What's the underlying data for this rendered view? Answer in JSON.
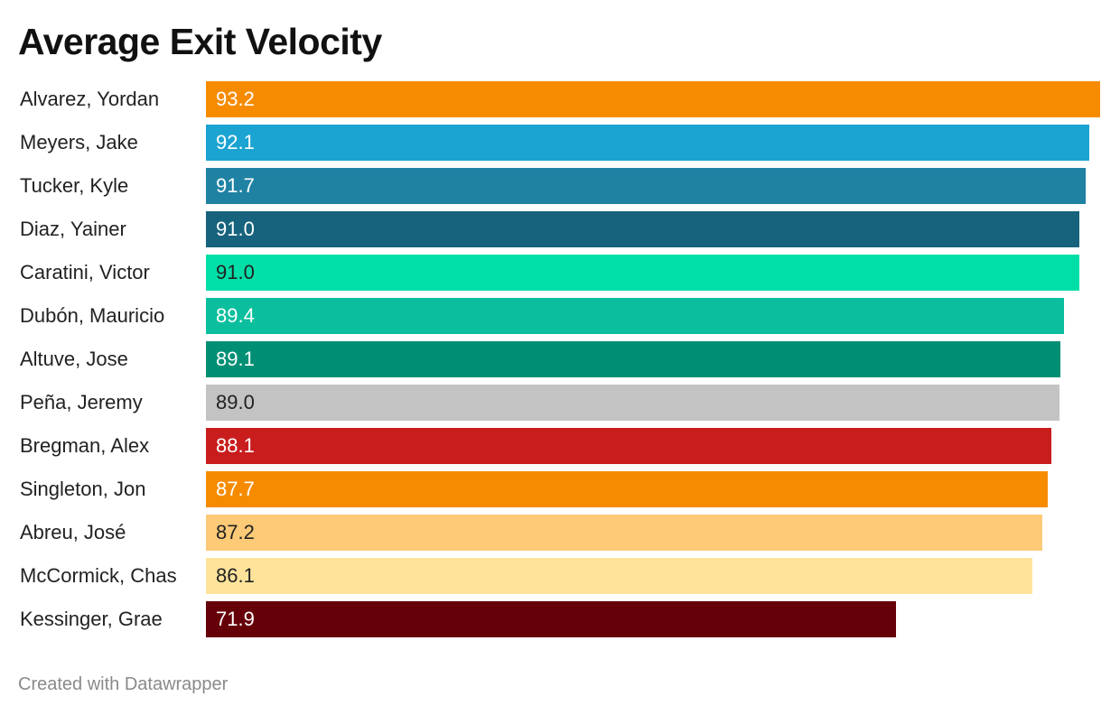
{
  "title": "Average Exit Velocity",
  "footer": "Created with Datawrapper",
  "chart_data": {
    "type": "bar",
    "orientation": "horizontal",
    "title": "Average Exit Velocity",
    "xlabel": "",
    "ylabel": "",
    "xlim": [
      0,
      93.2
    ],
    "grid": false,
    "legend": "none",
    "categories": [
      "Alvarez, Yordan",
      "Meyers, Jake",
      "Tucker, Kyle",
      "Diaz, Yainer",
      "Caratini, Victor",
      "Dubón, Mauricio",
      "Altuve, Jose",
      "Peña, Jeremy",
      "Bregman, Alex",
      "Singleton, Jon",
      "Abreu, José",
      "McCormick, Chas",
      "Kessinger, Grae"
    ],
    "values": [
      93.2,
      92.1,
      91.7,
      91.0,
      91.0,
      89.4,
      89.1,
      89.0,
      88.1,
      87.7,
      87.2,
      86.1,
      71.9
    ],
    "labels": [
      "93.2",
      "92.1",
      "91.7",
      "91.0",
      "91.0",
      "89.4",
      "89.1",
      "89.0",
      "88.1",
      "87.7",
      "87.2",
      "86.1",
      "71.9"
    ],
    "colors": [
      "#f68b00",
      "#1ba3d1",
      "#1f82a3",
      "#17637d",
      "#00dfa8",
      "#0bbf9e",
      "#008f74",
      "#c3c3c3",
      "#c91d1d",
      "#f68b00",
      "#fdca77",
      "#ffe39b",
      "#650009"
    ],
    "label_colors": [
      "#ffffff",
      "#ffffff",
      "#ffffff",
      "#ffffff",
      "#222222",
      "#ffffff",
      "#ffffff",
      "#222222",
      "#ffffff",
      "#ffffff",
      "#222222",
      "#222222",
      "#ffffff"
    ]
  }
}
